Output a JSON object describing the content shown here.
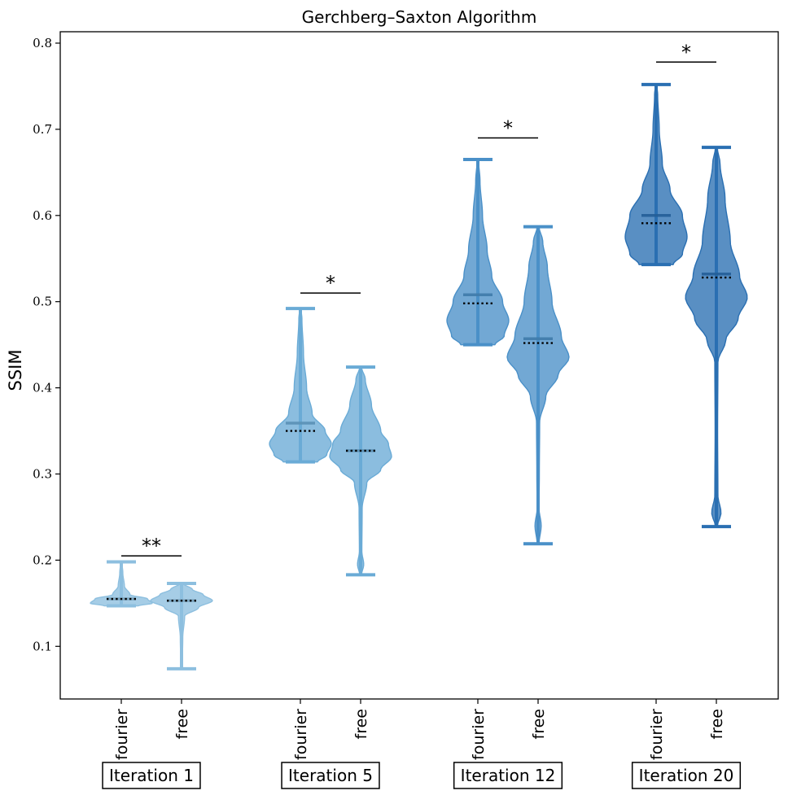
{
  "chart_data": {
    "type": "violin",
    "title": "Gerchberg–Saxton Algorithm",
    "ylabel": "SSIM",
    "ylim": [
      0.04,
      0.815
    ],
    "yticks": [
      0.1,
      0.2,
      0.3,
      0.4,
      0.5,
      0.6,
      0.7,
      0.8
    ],
    "ytick_labels": [
      "0.1",
      "0.2",
      "0.3",
      "0.4",
      "0.5",
      "0.6",
      "0.7",
      "0.8"
    ],
    "groups": [
      {
        "label": "Iteration 1",
        "color": "#8dbfdf",
        "significance": "**",
        "sig_y": 0.205,
        "violins": [
          {
            "name": "fourier",
            "min": 0.147,
            "max": 0.198,
            "mean": 0.155,
            "median": 0.155,
            "profile": [
              [
                0.147,
                0.55
              ],
              [
                0.15,
                1.0
              ],
              [
                0.155,
                0.85
              ],
              [
                0.16,
                0.28
              ],
              [
                0.17,
                0.1
              ],
              [
                0.185,
                0.05
              ],
              [
                0.198,
                0.02
              ]
            ]
          },
          {
            "name": "free",
            "min": 0.074,
            "max": 0.173,
            "mean": 0.153,
            "median": 0.153,
            "profile": [
              [
                0.074,
                0.02
              ],
              [
                0.11,
                0.04
              ],
              [
                0.135,
                0.1
              ],
              [
                0.145,
                0.55
              ],
              [
                0.153,
                1.0
              ],
              [
                0.16,
                0.7
              ],
              [
                0.166,
                0.35
              ],
              [
                0.173,
                0.05
              ]
            ]
          }
        ]
      },
      {
        "label": "Iteration 5",
        "color": "#6aabd6",
        "significance": "*",
        "sig_y": 0.51,
        "violins": [
          {
            "name": "fourier",
            "min": 0.314,
            "max": 0.492,
            "mean": 0.359,
            "median": 0.35,
            "profile": [
              [
                0.314,
                0.55
              ],
              [
                0.322,
                0.85
              ],
              [
                0.335,
                1.0
              ],
              [
                0.35,
                0.8
              ],
              [
                0.37,
                0.38
              ],
              [
                0.4,
                0.2
              ],
              [
                0.44,
                0.1
              ],
              [
                0.48,
                0.05
              ],
              [
                0.492,
                0.02
              ]
            ]
          },
          {
            "name": "free",
            "min": 0.183,
            "max": 0.424,
            "mean": 0.327,
            "median": 0.327,
            "profile": [
              [
                0.183,
                0.03
              ],
              [
                0.195,
                0.1
              ],
              [
                0.21,
                0.04
              ],
              [
                0.26,
                0.05
              ],
              [
                0.29,
                0.2
              ],
              [
                0.305,
                0.65
              ],
              [
                0.32,
                1.0
              ],
              [
                0.335,
                0.9
              ],
              [
                0.35,
                0.65
              ],
              [
                0.38,
                0.35
              ],
              [
                0.41,
                0.15
              ],
              [
                0.424,
                0.03
              ]
            ]
          }
        ]
      },
      {
        "label": "Iteration 12",
        "color": "#4a90c8",
        "significance": "*",
        "sig_y": 0.69,
        "violins": [
          {
            "name": "fourier",
            "min": 0.45,
            "max": 0.665,
            "mean": 0.508,
            "median": 0.498,
            "profile": [
              [
                0.45,
                0.55
              ],
              [
                0.46,
                0.85
              ],
              [
                0.478,
                1.0
              ],
              [
                0.5,
                0.8
              ],
              [
                0.53,
                0.45
              ],
              [
                0.56,
                0.3
              ],
              [
                0.6,
                0.15
              ],
              [
                0.64,
                0.07
              ],
              [
                0.665,
                0.02
              ]
            ]
          },
          {
            "name": "free",
            "min": 0.219,
            "max": 0.587,
            "mean": 0.457,
            "median": 0.452,
            "profile": [
              [
                0.219,
                0.03
              ],
              [
                0.24,
                0.1
              ],
              [
                0.26,
                0.03
              ],
              [
                0.3,
                0.04
              ],
              [
                0.36,
                0.05
              ],
              [
                0.39,
                0.25
              ],
              [
                0.415,
                0.65
              ],
              [
                0.435,
                1.0
              ],
              [
                0.46,
                0.75
              ],
              [
                0.5,
                0.45
              ],
              [
                0.54,
                0.3
              ],
              [
                0.57,
                0.15
              ],
              [
                0.587,
                0.03
              ]
            ]
          }
        ]
      },
      {
        "label": "Iteration 20",
        "color": "#2a6fb2",
        "significance": "*",
        "sig_y": 0.778,
        "violins": [
          {
            "name": "fourier",
            "min": 0.543,
            "max": 0.752,
            "mean": 0.6,
            "median": 0.591,
            "profile": [
              [
                0.543,
                0.55
              ],
              [
                0.555,
                0.85
              ],
              [
                0.575,
                1.0
              ],
              [
                0.6,
                0.85
              ],
              [
                0.63,
                0.45
              ],
              [
                0.66,
                0.2
              ],
              [
                0.7,
                0.1
              ],
              [
                0.74,
                0.05
              ],
              [
                0.752,
                0.02
              ]
            ]
          },
          {
            "name": "free",
            "min": 0.239,
            "max": 0.679,
            "mean": 0.532,
            "median": 0.528,
            "profile": [
              [
                0.239,
                0.03
              ],
              [
                0.255,
                0.15
              ],
              [
                0.275,
                0.05
              ],
              [
                0.35,
                0.04
              ],
              [
                0.43,
                0.05
              ],
              [
                0.455,
                0.3
              ],
              [
                0.48,
                0.7
              ],
              [
                0.505,
                1.0
              ],
              [
                0.53,
                0.75
              ],
              [
                0.57,
                0.45
              ],
              [
                0.62,
                0.28
              ],
              [
                0.66,
                0.12
              ],
              [
                0.679,
                0.03
              ]
            ]
          }
        ]
      }
    ]
  }
}
